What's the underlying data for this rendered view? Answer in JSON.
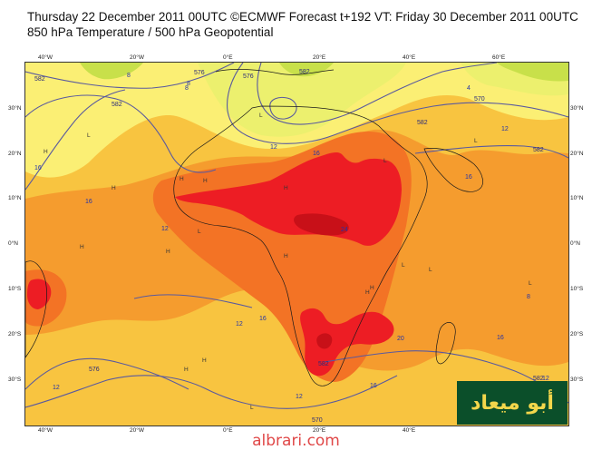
{
  "header": {
    "line1": "Thursday 22 December 2011 00UTC ©ECMWF Forecast t+192 VT: Friday 30 December 2011 00UTC",
    "line2": "850 hPa Temperature / 500 hPa Geopotential"
  },
  "axes": {
    "lon_labels": [
      "40°W",
      "20°W",
      "0°E",
      "20°E",
      "40°E",
      "60°E"
    ],
    "lat_labels": [
      "30°N",
      "20°N",
      "10°N",
      "0°N",
      "10°S",
      "20°S",
      "30°S"
    ]
  },
  "contour_labels": {
    "geopotential": [
      "582",
      "582",
      "576",
      "576",
      "582",
      "570",
      "582",
      "576",
      "570",
      "582",
      "582",
      "582"
    ],
    "temperature": [
      "8",
      "8",
      "4",
      "12",
      "16",
      "16",
      "16",
      "12",
      "16",
      "24",
      "16",
      "12",
      "16",
      "20",
      "16",
      "12",
      "12",
      "12",
      "8",
      "12",
      "8"
    ]
  },
  "pressure_markers": {
    "high": "H",
    "low": "L"
  },
  "colors": {
    "band_4": "#c8e04a",
    "band_8": "#ecf06e",
    "band_12": "#fbef74",
    "band_16": "#f8c440",
    "band_20": "#f59c2e",
    "band_24": "#f37325",
    "band_28": "#ed1d24",
    "band_32": "#c81018",
    "contour_line": "#5a5a9e",
    "coast": "#1a1a1a"
  },
  "watermark": {
    "text": "أبو ميعاد"
  },
  "site": {
    "text": "albrari.com"
  }
}
